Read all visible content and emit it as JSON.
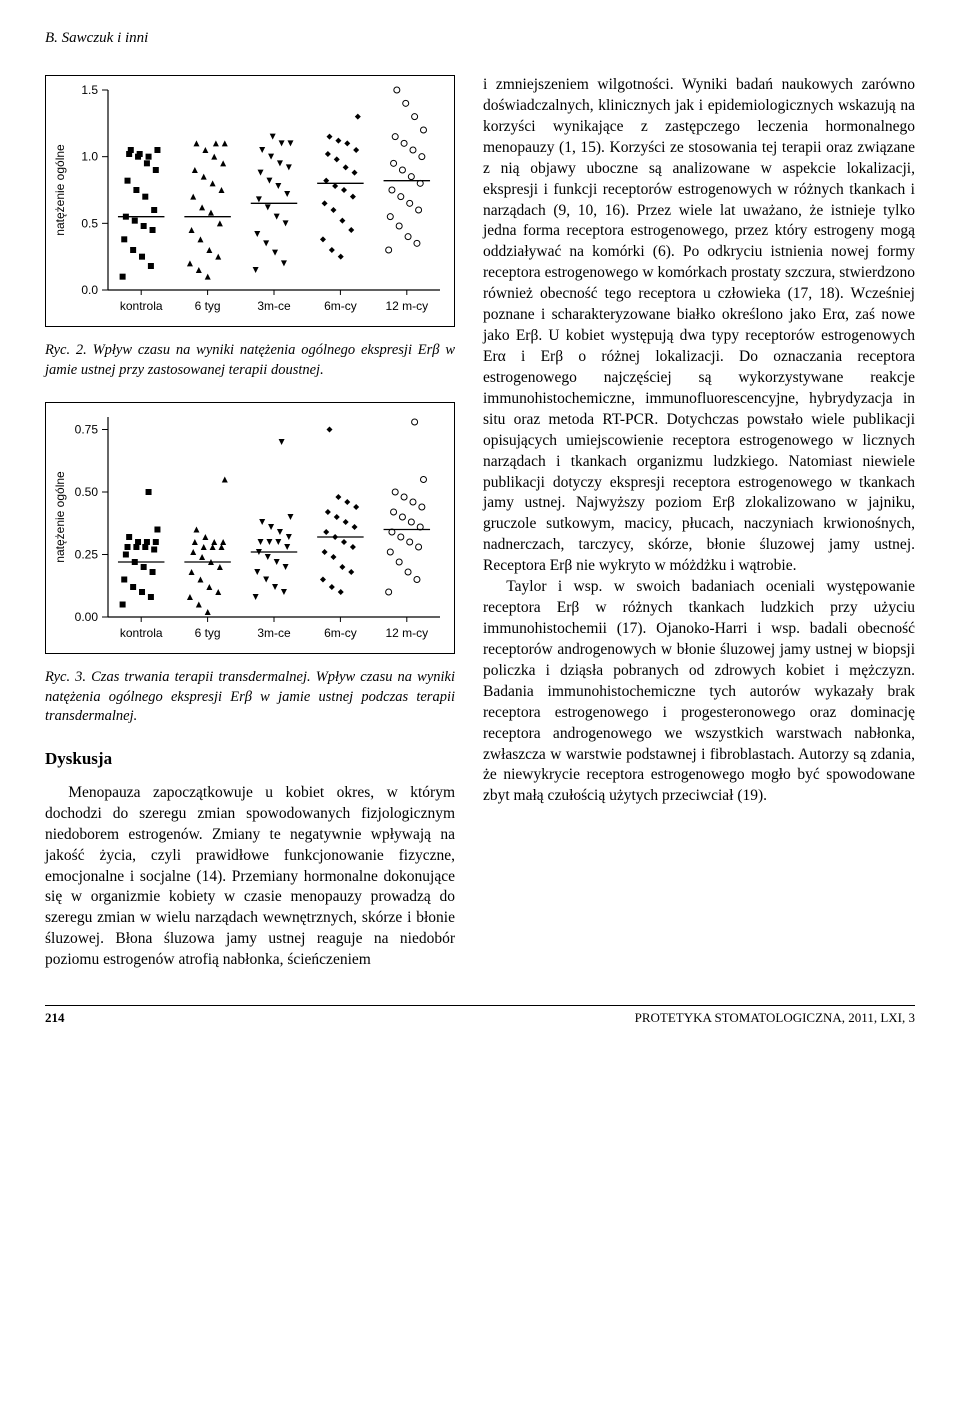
{
  "running_head": "B. Sawczuk i inni",
  "chart1": {
    "type": "scatter-strip",
    "ylabel": "natężenie ogólne",
    "categories": [
      "kontrola",
      "6 tyg",
      "3m-ce",
      "6m-cy",
      "12 m-cy"
    ],
    "ylim": [
      0.0,
      1.5
    ],
    "yticks": [
      0.0,
      0.5,
      1.0,
      1.5
    ],
    "ytick_labels": [
      "0.0",
      "0.5",
      "1.0",
      "1.5"
    ],
    "medians": [
      0.55,
      0.55,
      0.65,
      0.8,
      0.82
    ],
    "points": {
      "kontrola": [
        0.1,
        0.18,
        0.25,
        0.3,
        0.38,
        0.45,
        0.48,
        0.52,
        0.55,
        0.6,
        0.7,
        0.75,
        0.82,
        0.9,
        0.95,
        1.0,
        1.02,
        1.05,
        1.0,
        1.02,
        1.05
      ],
      "6 tyg": [
        0.1,
        0.15,
        0.2,
        0.25,
        0.3,
        0.38,
        0.45,
        0.5,
        0.58,
        0.62,
        0.7,
        0.75,
        0.8,
        0.85,
        0.9,
        0.95,
        1.0,
        1.05,
        1.1,
        1.1,
        1.1
      ],
      "3m-ce": [
        0.15,
        0.2,
        0.28,
        0.35,
        0.42,
        0.5,
        0.55,
        0.62,
        0.68,
        0.72,
        0.78,
        0.82,
        0.88,
        0.92,
        0.95,
        1.0,
        1.05,
        1.1,
        1.1,
        1.15
      ],
      "6m-cy": [
        0.25,
        0.3,
        0.38,
        0.45,
        0.52,
        0.6,
        0.65,
        0.7,
        0.75,
        0.78,
        0.82,
        0.88,
        0.92,
        0.98,
        1.02,
        1.05,
        1.1,
        1.12,
        1.15,
        1.3
      ],
      "12 m-cy": [
        0.3,
        0.35,
        0.4,
        0.48,
        0.55,
        0.6,
        0.65,
        0.7,
        0.75,
        0.8,
        0.85,
        0.9,
        0.95,
        1.0,
        1.05,
        1.1,
        1.15,
        1.2,
        1.3,
        1.4,
        1.5
      ]
    },
    "markers": [
      "square-filled",
      "triangle-up",
      "triangle-down",
      "diamond",
      "circle-open"
    ],
    "label_fontsize": 12,
    "tick_fontsize": 12,
    "axis_color": "#000000",
    "background": "#ffffff"
  },
  "caption1_num": "Ryc. 2. ",
  "caption1_text": "Wpływ czasu na wyniki natężenia ogólnego ekspresji Erβ w jamie ustnej przy zastosowanej terapii doustnej.",
  "chart2": {
    "type": "scatter-strip",
    "ylabel": "natężenie ogólne",
    "categories": [
      "kontrola",
      "6 tyg",
      "3m-ce",
      "6m-cy",
      "12 m-cy"
    ],
    "ylim": [
      0.0,
      0.8
    ],
    "yticks": [
      0.0,
      0.25,
      0.5,
      0.75
    ],
    "ytick_labels": [
      "0.00",
      "0.25",
      "0.50",
      "0.75"
    ],
    "medians": [
      0.22,
      0.22,
      0.26,
      0.32,
      0.35
    ],
    "points": {
      "kontrola": [
        0.05,
        0.08,
        0.1,
        0.12,
        0.15,
        0.18,
        0.2,
        0.22,
        0.25,
        0.27,
        0.28,
        0.28,
        0.28,
        0.3,
        0.3,
        0.3,
        0.32,
        0.35,
        0.5
      ],
      "6 tyg": [
        0.02,
        0.05,
        0.08,
        0.1,
        0.12,
        0.15,
        0.18,
        0.2,
        0.22,
        0.24,
        0.26,
        0.28,
        0.28,
        0.28,
        0.3,
        0.3,
        0.3,
        0.32,
        0.35,
        0.55
      ],
      "3m-ce": [
        0.08,
        0.1,
        0.12,
        0.15,
        0.18,
        0.2,
        0.22,
        0.24,
        0.26,
        0.28,
        0.3,
        0.3,
        0.3,
        0.32,
        0.34,
        0.36,
        0.38,
        0.4,
        0.7
      ],
      "6m-cy": [
        0.1,
        0.12,
        0.15,
        0.18,
        0.2,
        0.24,
        0.26,
        0.28,
        0.3,
        0.32,
        0.34,
        0.36,
        0.38,
        0.4,
        0.42,
        0.44,
        0.46,
        0.48,
        0.75
      ],
      "12 m-cy": [
        0.1,
        0.15,
        0.18,
        0.22,
        0.26,
        0.28,
        0.3,
        0.32,
        0.34,
        0.36,
        0.38,
        0.4,
        0.42,
        0.44,
        0.46,
        0.48,
        0.5,
        0.55,
        0.78
      ]
    },
    "markers": [
      "square-filled",
      "triangle-up",
      "triangle-down",
      "diamond",
      "circle-open"
    ],
    "label_fontsize": 12,
    "tick_fontsize": 12,
    "axis_color": "#000000",
    "background": "#ffffff"
  },
  "caption2_num": "Ryc. 3. ",
  "caption2_text": "Czas trwania terapii transdermalnej. Wpływ czasu na wyniki natężenia ogólnego ekspresji Erβ w jamie ustnej podczas terapii transdermalnej.",
  "section_heading": "Dyskusja",
  "left_para": "Menopauza zapoczątkowuje u kobiet okres, w którym dochodzi do szeregu zmian spowodowanych fizjologicznym niedoborem estrogenów. Zmiany te negatywnie wpływają na jakość życia, czyli prawidłowe funkcjonowanie fizyczne, emocjonalne i socjalne (14). Przemiany hormonalne dokonujące się w organizmie kobiety w czasie menopauzy prowadzą do szeregu zmian w wielu narządach wewnętrznych, skórze i błonie śluzowej. Błona śluzowa jamy ustnej reaguje na niedobór poziomu estrogenów atrofią nabłonka, ścieńczeniem",
  "right_para1": "i zmniejszeniem wilgotności. Wyniki badań naukowych zarówno doświadczalnych, klinicznych jak i epidemiologicznych wskazują na korzyści wynikające z zastępczego leczenia hormonalnego menopauzy (1, 15). Korzyści ze stosowania tej terapii oraz związane z nią objawy uboczne są analizowane w aspekcie lokalizacji, ekspresji i funkcji receptorów estrogenowych w różnych tkankach i narządach (9, 10, 16). Przez wiele lat uważano, że istnieje tylko jedna forma receptora estrogenowego, przez który estrogeny mogą oddziaływać na komórki (6). Po odkryciu istnienia nowej formy receptora estrogenowego w komórkach prostaty szczura, stwierdzono również obecność tego receptora u człowieka (17, 18). Wcześniej poznane i scharakteryzowane białko określono jako Erα, zaś nowe jako Erβ. U kobiet występują dwa typy receptorów estrogenowych Erα i Erβ o różnej lokalizacji. Do oznaczania receptora estrogenowego najczęściej są wykorzystywane reakcje immunohistochemiczne, immunofluorescencyjne, hybrydyzacja in situ oraz metoda RT-PCR. Dotychczas powstało wiele publikacji opisujących umiejscowienie receptora estrogenowego w licznych narządach i tkankach organizmu ludzkiego. Natomiast niewiele publikacji dotyczy ekspresji receptora estrogenowego w tkankach jamy ustnej. Najwyższy poziom Erβ zlokalizowano w jajniku, gruczole sutkowym, macicy, płucach, naczyniach krwionośnych, nadnerczach, tarczycy, skórze, błonie śluzowej jamy ustnej. Receptora Erβ nie wykryto w móżdżku i wątrobie.",
  "right_para2": "Taylor i wsp. w swoich badaniach oceniali występowanie receptora Erβ w różnych tkankach ludzkich przy użyciu immunohistochemii (17). Ojanoko-Harri i wsp. badali obecność receptorów androgenowych w błonie śluzowej jamy ustnej w biopsji policzka i dziąsła pobranych od zdrowych kobiet i mężczyzn. Badania immunohistochemiczne tych autorów wykazały brak receptora estrogenowego i progesteronowego oraz dominację receptora androgenowego we wszystkich warstwach nabłonka, zwłaszcza w warstwie podstawnej i fibroblastach. Autorzy są zdania, że niewykrycie receptora estrogenowego mogło być spowodowane zbyt małą czułością użytych przeciwciał (19).",
  "footer_page": "214",
  "footer_journal": "PROTETYKA STOMATOLOGICZNA, 2011, LXI, 3"
}
